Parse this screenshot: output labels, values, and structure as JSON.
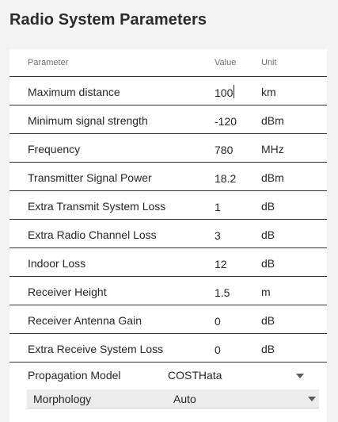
{
  "page": {
    "title": "Radio System Parameters"
  },
  "table": {
    "headers": {
      "parameter": "Parameter",
      "value": "Value",
      "unit": "Unit"
    },
    "rows": [
      {
        "parameter": "Maximum distance",
        "value": "100",
        "unit": "km",
        "focused": true
      },
      {
        "parameter": "Minimum signal strength",
        "value": "-120",
        "unit": "dBm"
      },
      {
        "parameter": "Frequency",
        "value": "780",
        "unit": "MHz"
      },
      {
        "parameter": "Transmitter Signal Power",
        "value": "18.2",
        "unit": "dBm"
      },
      {
        "parameter": "Extra Transmit System Loss",
        "value": "1",
        "unit": "dB"
      },
      {
        "parameter": "Extra Radio Channel Loss",
        "value": "3",
        "unit": "dB"
      },
      {
        "parameter": "Indoor Loss",
        "value": "12",
        "unit": "dB"
      },
      {
        "parameter": "Receiver Height",
        "value": "1.5",
        "unit": "m"
      },
      {
        "parameter": "Receiver Antenna Gain",
        "value": "0",
        "unit": "dB"
      },
      {
        "parameter": "Extra Receive System Loss",
        "value": "0",
        "unit": "dB"
      }
    ]
  },
  "propagation": {
    "label": "Propagation Model",
    "value": "COSTHata",
    "icon": "chevron-down-icon"
  },
  "morphology": {
    "label": "Morphology",
    "value": "Auto",
    "icon": "chevron-down-icon"
  },
  "colors": {
    "background": "#f3f3f3",
    "card": "#ffffff",
    "divider": "#333333",
    "header_text": "#6d6d6d",
    "subselect_bg": "#ececec"
  }
}
